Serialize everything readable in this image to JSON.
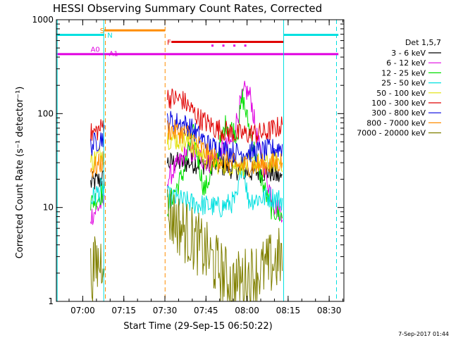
{
  "chart_data": {
    "type": "line",
    "title": "HESSI Observing Summary Count Rates, Corrected",
    "xlabel": "Start Time (29-Sep-15 06:50:22)",
    "ylabel": "Corrected Count Rate (s⁻¹ detector⁻¹)",
    "ylog": true,
    "ylim": [
      1,
      1000
    ],
    "xlim_minutes_from_start": [
      0,
      105
    ],
    "x_ticks": [
      "07:00",
      "07:15",
      "07:30",
      "07:45",
      "08:00",
      "08:15",
      "08:30"
    ],
    "x_tick_minutes": [
      9.633,
      24.633,
      39.633,
      54.633,
      69.633,
      84.633,
      99.633
    ],
    "y_ticks": [
      "1",
      "10",
      "100",
      "1000"
    ],
    "y_tick_values": [
      1,
      10,
      100,
      1000
    ],
    "legend_title": "Det 1,5,7",
    "legend_placement": "right",
    "footer_date": "7-Sep-2017 01:44",
    "series": [
      {
        "name": "3 - 6 keV",
        "color": "#000000"
      },
      {
        "name": "6 - 12 keV",
        "color": "#e000e0"
      },
      {
        "name": "12 - 25 keV",
        "color": "#00e000"
      },
      {
        "name": "25 - 50 keV",
        "color": "#00e0e0"
      },
      {
        "name": "50 - 100 keV",
        "color": "#e0e000"
      },
      {
        "name": "100 - 300 keV",
        "color": "#e00000"
      },
      {
        "name": "300 - 800 keV",
        "color": "#0000e0"
      },
      {
        "name": "800 - 7000 keV",
        "color": "#ff8c00"
      },
      {
        "name": "7000 - 20000 keV",
        "color": "#808000"
      }
    ],
    "segments": [
      {
        "start": 12.5,
        "end": 17.5
      },
      {
        "start": 40.5,
        "end": 82.5
      }
    ],
    "series_levels": [
      [
        [
          12.5,
          18
        ],
        [
          16.5,
          20
        ],
        [
          17.5,
          20
        ],
        [
          40.5,
          30
        ],
        [
          50,
          30
        ],
        [
          60,
          28
        ],
        [
          70,
          24
        ],
        [
          78,
          24
        ],
        [
          82.5,
          20
        ]
      ],
      [
        [
          12.5,
          8
        ],
        [
          16.5,
          11
        ],
        [
          17.5,
          11
        ],
        [
          40.5,
          20
        ],
        [
          48,
          40
        ],
        [
          56,
          30
        ],
        [
          64,
          50
        ],
        [
          67,
          120
        ],
        [
          69,
          180
        ],
        [
          71,
          150
        ],
        [
          73,
          60
        ],
        [
          76,
          25
        ],
        [
          80,
          10
        ],
        [
          82.5,
          9
        ]
      ],
      [
        [
          12.5,
          11
        ],
        [
          16.5,
          14
        ],
        [
          17.5,
          14
        ],
        [
          40.5,
          10
        ],
        [
          46,
          22
        ],
        [
          50,
          60
        ],
        [
          54,
          15
        ],
        [
          58,
          30
        ],
        [
          62,
          80
        ],
        [
          66,
          60
        ],
        [
          68,
          150
        ],
        [
          70,
          80
        ],
        [
          74,
          25
        ],
        [
          78,
          10
        ],
        [
          80,
          9
        ],
        [
          82.5,
          8
        ]
      ],
      [
        [
          12.5,
          12
        ],
        [
          16.5,
          16
        ],
        [
          17.5,
          16
        ],
        [
          40.5,
          13
        ],
        [
          50,
          11
        ],
        [
          60,
          10
        ],
        [
          66,
          12
        ],
        [
          68,
          35
        ],
        [
          70,
          12
        ],
        [
          78,
          13
        ],
        [
          82.5,
          12
        ]
      ],
      [
        [
          12.5,
          30
        ],
        [
          16.5,
          38
        ],
        [
          17.5,
          38
        ],
        [
          40.5,
          55
        ],
        [
          48,
          50
        ],
        [
          56,
          30
        ],
        [
          66,
          28
        ],
        [
          76,
          30
        ],
        [
          82.5,
          31
        ]
      ],
      [
        [
          12.5,
          60
        ],
        [
          16.5,
          70
        ],
        [
          17.5,
          85
        ],
        [
          40.5,
          150
        ],
        [
          46,
          140
        ],
        [
          52,
          90
        ],
        [
          58,
          70
        ],
        [
          66,
          60
        ],
        [
          76,
          62
        ],
        [
          82.5,
          75
        ]
      ],
      [
        [
          12.5,
          45
        ],
        [
          16.5,
          55
        ],
        [
          17.5,
          60
        ],
        [
          40.5,
          85
        ],
        [
          48,
          75
        ],
        [
          56,
          45
        ],
        [
          66,
          38
        ],
        [
          76,
          40
        ],
        [
          82.5,
          44
        ]
      ],
      [
        [
          12.5,
          25
        ],
        [
          16.5,
          30
        ],
        [
          17.5,
          32
        ],
        [
          40.5,
          68
        ],
        [
          48,
          60
        ],
        [
          56,
          35
        ],
        [
          66,
          28
        ],
        [
          76,
          28
        ],
        [
          82.5,
          31
        ]
      ],
      [
        [
          12.5,
          2.0
        ],
        [
          16.5,
          2.8
        ],
        [
          17.5,
          4.0
        ],
        [
          40.5,
          9
        ],
        [
          46,
          6
        ],
        [
          52,
          4
        ],
        [
          58,
          2.5
        ],
        [
          64,
          1.5
        ],
        [
          70,
          1.8
        ],
        [
          76,
          2.2
        ],
        [
          82.5,
          3.0
        ]
      ]
    ],
    "flags": [
      {
        "label": "S",
        "color": "#ff8c00",
        "value": 770,
        "x_range": [
          17.5,
          39.7
        ],
        "label_x": 15.9
      },
      {
        "label": "N",
        "color": "#00e0e0",
        "value": 690,
        "x_range": [
          0,
          17.5
        ],
        "label_x": 18.6
      },
      {
        "label": "F",
        "color": "#e00000",
        "value": 580,
        "x_range": [
          42,
          83
        ],
        "label_x": 40.4
      },
      {
        "label": "A0",
        "color": "#e000e0",
        "value": 490,
        "label_x": 12.5
      },
      {
        "label": "A1",
        "color": "#e000e0",
        "value": 440,
        "label_x": 19.2
      }
    ],
    "flag_lines": [
      {
        "color": "#00e0e0",
        "value": 690,
        "x_range": [
          0,
          17.5
        ]
      },
      {
        "color": "#00e0e0",
        "value": 690,
        "x_range": [
          83,
          103
        ]
      },
      {
        "color": "#ff8c00",
        "value": 770,
        "x_range": [
          17.5,
          39.7
        ]
      },
      {
        "color": "#e00000",
        "value": 580,
        "x_range": [
          42,
          83
        ]
      },
      {
        "color": "#e000e0",
        "value": 430,
        "x_range": [
          0,
          103
        ]
      }
    ],
    "markers": [
      {
        "color": "#e000e0",
        "value": 530,
        "x": [
          57,
          61,
          65,
          69
        ]
      }
    ],
    "vertical_lines": [
      {
        "x": 0.3,
        "color": "#00e0e0",
        "dashed": false
      },
      {
        "x": 17.3,
        "color": "#00e0e0",
        "dashed": false
      },
      {
        "x": 17.9,
        "color": "#ff8c00",
        "dashed": true
      },
      {
        "x": 39.7,
        "color": "#ff8c00",
        "dashed": true
      },
      {
        "x": 83.0,
        "color": "#00e0e0",
        "dashed": false
      },
      {
        "x": 102.3,
        "color": "#00e0e0",
        "dashed": true
      }
    ]
  }
}
